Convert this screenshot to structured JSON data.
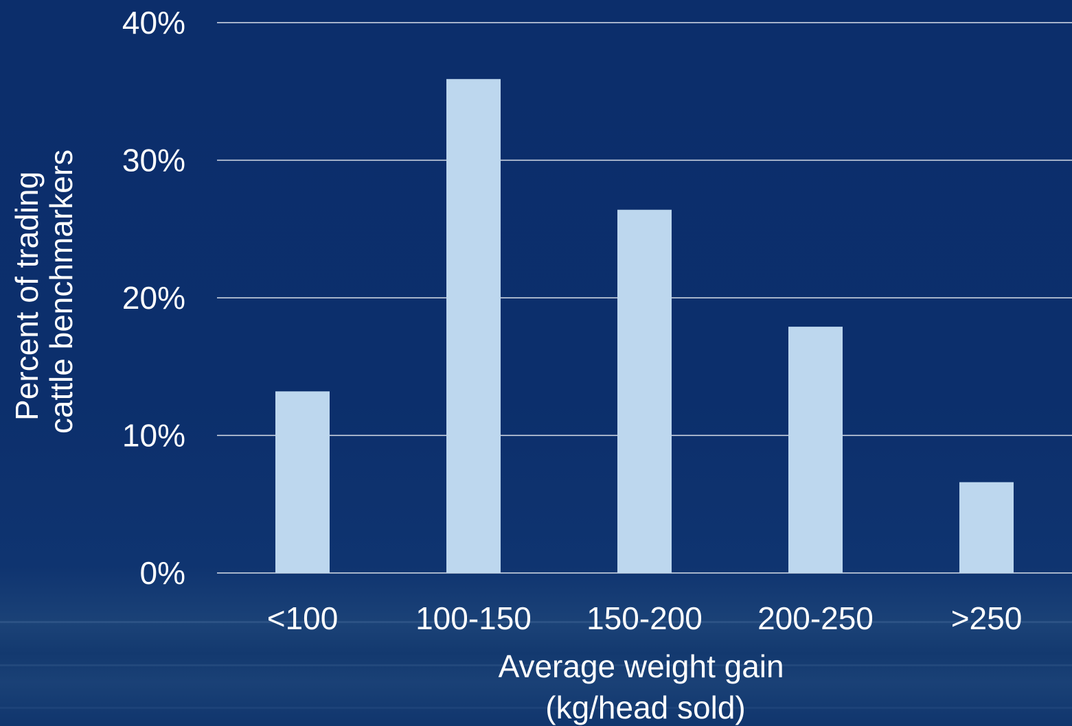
{
  "chart_data": {
    "type": "bar",
    "categories": [
      "<100",
      "100-150",
      "150-200",
      "200-250",
      ">250"
    ],
    "values": [
      13.2,
      35.9,
      26.4,
      17.9,
      6.6
    ],
    "ylim": [
      0,
      40
    ],
    "yticks": [
      0,
      10,
      20,
      30,
      40
    ],
    "ytick_labels": [
      "0%",
      "10%",
      "20%",
      "30%",
      "40%"
    ],
    "xlabel_lines": [
      "Average weight gain",
      "(kg/head sold)"
    ],
    "ylabel_lines": [
      "Percent of trading",
      "cattle benchmarkers"
    ],
    "grid": true,
    "legend": "none",
    "bar_color": "#bdd7ee",
    "grid_color": "#ffffff",
    "background_color": "#0c2e6b"
  }
}
